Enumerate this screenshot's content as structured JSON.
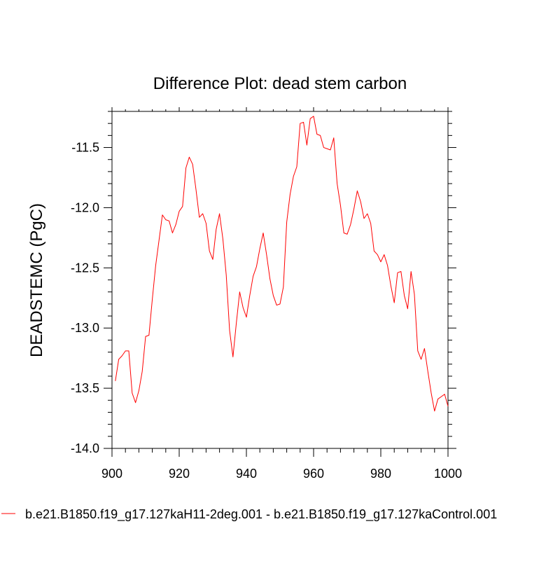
{
  "chart_data": {
    "type": "line",
    "title": "Difference Plot: dead stem carbon",
    "xlabel": "",
    "ylabel": "DEADSTEMC  (PgC)",
    "xlim": [
      900,
      1000
    ],
    "ylim": [
      -14.0,
      -11.2
    ],
    "xticks": [
      900,
      920,
      940,
      960,
      980,
      1000
    ],
    "xtick_labels": [
      "900",
      "920",
      "940",
      "960",
      "980",
      "1000"
    ],
    "yticks": [
      -14.0,
      -13.5,
      -13.0,
      -12.5,
      -12.0,
      -11.5
    ],
    "ytick_labels": [
      "-14.0",
      "-13.5",
      "-13.0",
      "-12.5",
      "-12.0",
      "-11.5"
    ],
    "grid": false,
    "legend_position": "bottom-left",
    "series": [
      {
        "name": "b.e21.B1850.f19_g17.127kaH11-2deg.001 - b.e21.B1850.f19_g17.127kaControl.001",
        "color": "#ff0000",
        "x": [
          901,
          902,
          903,
          904,
          905,
          906,
          907,
          908,
          909,
          910,
          911,
          912,
          913,
          914,
          915,
          916,
          917,
          918,
          919,
          920,
          921,
          922,
          923,
          924,
          925,
          926,
          927,
          928,
          929,
          930,
          931,
          932,
          933,
          934,
          935,
          936,
          937,
          938,
          939,
          940,
          941,
          942,
          943,
          944,
          945,
          946,
          947,
          948,
          949,
          950,
          951,
          952,
          953,
          954,
          955,
          956,
          957,
          958,
          959,
          960,
          961,
          962,
          963,
          964,
          965,
          966,
          967,
          968,
          969,
          970,
          971,
          972,
          973,
          974,
          975,
          976,
          977,
          978,
          979,
          980,
          981,
          982,
          983,
          984,
          985,
          986,
          987,
          988,
          989,
          990,
          991,
          992,
          993,
          994,
          995,
          996,
          997,
          998,
          999,
          1000
        ],
        "y": [
          -13.44,
          -13.26,
          -13.23,
          -13.19,
          -13.19,
          -13.54,
          -13.62,
          -13.52,
          -13.36,
          -13.07,
          -13.06,
          -12.76,
          -12.48,
          -12.27,
          -12.06,
          -12.1,
          -12.11,
          -12.21,
          -12.14,
          -12.03,
          -11.99,
          -11.67,
          -11.58,
          -11.64,
          -11.85,
          -12.08,
          -12.05,
          -12.13,
          -12.36,
          -12.43,
          -12.18,
          -12.05,
          -12.26,
          -12.56,
          -13.02,
          -13.24,
          -12.96,
          -12.7,
          -12.83,
          -12.91,
          -12.73,
          -12.57,
          -12.49,
          -12.34,
          -12.21,
          -12.39,
          -12.59,
          -12.73,
          -12.81,
          -12.8,
          -12.66,
          -12.12,
          -11.89,
          -11.74,
          -11.66,
          -11.3,
          -11.29,
          -11.48,
          -11.26,
          -11.24,
          -11.39,
          -11.4,
          -11.5,
          -11.51,
          -11.52,
          -11.42,
          -11.8,
          -11.98,
          -12.21,
          -12.22,
          -12.14,
          -12.01,
          -11.86,
          -11.95,
          -12.09,
          -12.05,
          -12.13,
          -12.36,
          -12.39,
          -12.45,
          -12.39,
          -12.48,
          -12.65,
          -12.79,
          -12.54,
          -12.53,
          -12.73,
          -12.84,
          -12.53,
          -12.72,
          -13.19,
          -13.26,
          -13.17,
          -13.36,
          -13.54,
          -13.69,
          -13.59,
          -13.57,
          -13.55,
          -13.65
        ]
      }
    ]
  }
}
